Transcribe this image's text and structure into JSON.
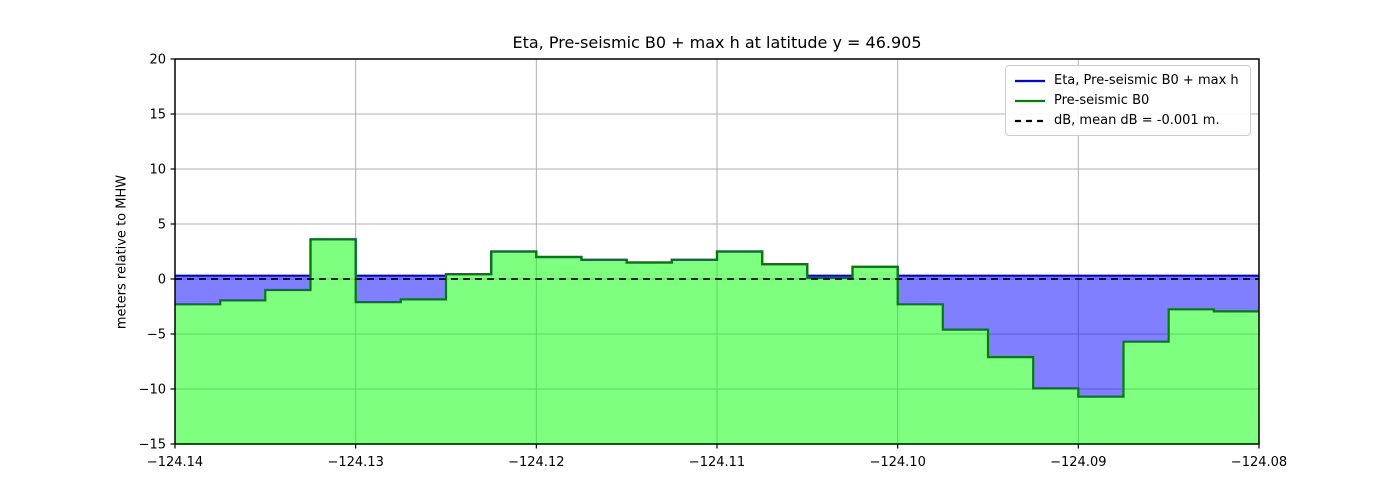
{
  "figure": {
    "title": "Eta, Pre-seismic B0 + max h at latitude y = 46.905",
    "ylabel": "meters relative to MHW"
  },
  "legend": {
    "items": [
      {
        "label": "Eta, Pre-seismic B0 + max h",
        "color": "#0000ff",
        "dash": false
      },
      {
        "label": "Pre-seismic B0",
        "color": "#008000",
        "dash": false
      },
      {
        "label": "dB, mean dB = -0.001 m.",
        "color": "#000000",
        "dash": true
      }
    ]
  },
  "chart_data": {
    "type": "area",
    "title": "Eta, Pre-seismic B0 + max h at latitude y = 46.905",
    "xlabel": "",
    "ylabel": "meters relative to MHW",
    "xlim": [
      -124.14,
      -124.08
    ],
    "ylim": [
      -15,
      20
    ],
    "xticks": [
      -124.14,
      -124.13,
      -124.12,
      -124.11,
      -124.1,
      -124.09,
      -124.08
    ],
    "xtick_labels": [
      "−124.14",
      "−124.13",
      "−124.12",
      "−124.11",
      "−124.10",
      "−124.09",
      "−124.08"
    ],
    "yticks": [
      -15,
      -10,
      -5,
      0,
      5,
      10,
      15,
      20
    ],
    "ytick_labels": [
      "−15",
      "−10",
      "−5",
      "0",
      "5",
      "10",
      "15",
      "20"
    ],
    "grid": true,
    "legend_position": "upper right",
    "x_edges": [
      -124.14,
      -124.1375,
      -124.135,
      -124.1325,
      -124.13,
      -124.1275,
      -124.125,
      -124.1225,
      -124.12,
      -124.1175,
      -124.115,
      -124.1125,
      -124.11,
      -124.1075,
      -124.105,
      -124.1025,
      -124.1,
      -124.0975,
      -124.095,
      -124.0925,
      -124.09,
      -124.0875,
      -124.085,
      -124.0825,
      -124.08
    ],
    "series": [
      {
        "name": "Eta, Pre-seismic B0 + max h",
        "plot": "step",
        "color": "#0000ff",
        "fill_color": "rgba(0,0,255,0.5)",
        "fill_to": "Pre-seismic B0",
        "values": [
          0.3,
          0.3,
          0.3,
          3.6,
          0.3,
          0.3,
          0.45,
          2.5,
          2.0,
          1.75,
          1.5,
          1.75,
          2.5,
          1.35,
          0.3,
          1.1,
          0.3,
          0.3,
          0.3,
          0.3,
          0.3,
          0.3,
          0.3,
          0.3
        ]
      },
      {
        "name": "Pre-seismic B0",
        "plot": "step",
        "color": "#008000",
        "fill_color": "rgba(0,255,0,0.5)",
        "fill_to": "bottom",
        "values": [
          -2.3,
          -1.95,
          -1.0,
          3.6,
          -2.1,
          -1.85,
          0.45,
          2.5,
          2.0,
          1.75,
          1.5,
          1.75,
          2.5,
          1.35,
          0.1,
          1.1,
          -2.3,
          -4.6,
          -7.1,
          -9.95,
          -10.7,
          -5.7,
          -2.75,
          -2.95
        ]
      },
      {
        "name": "dB, mean dB = -0.001 m.",
        "plot": "hline",
        "color": "#000000",
        "dash": true,
        "value": -0.001
      }
    ],
    "colors": {
      "grid": "#b0b0b0",
      "spine": "#000000",
      "background": "#ffffff"
    }
  }
}
